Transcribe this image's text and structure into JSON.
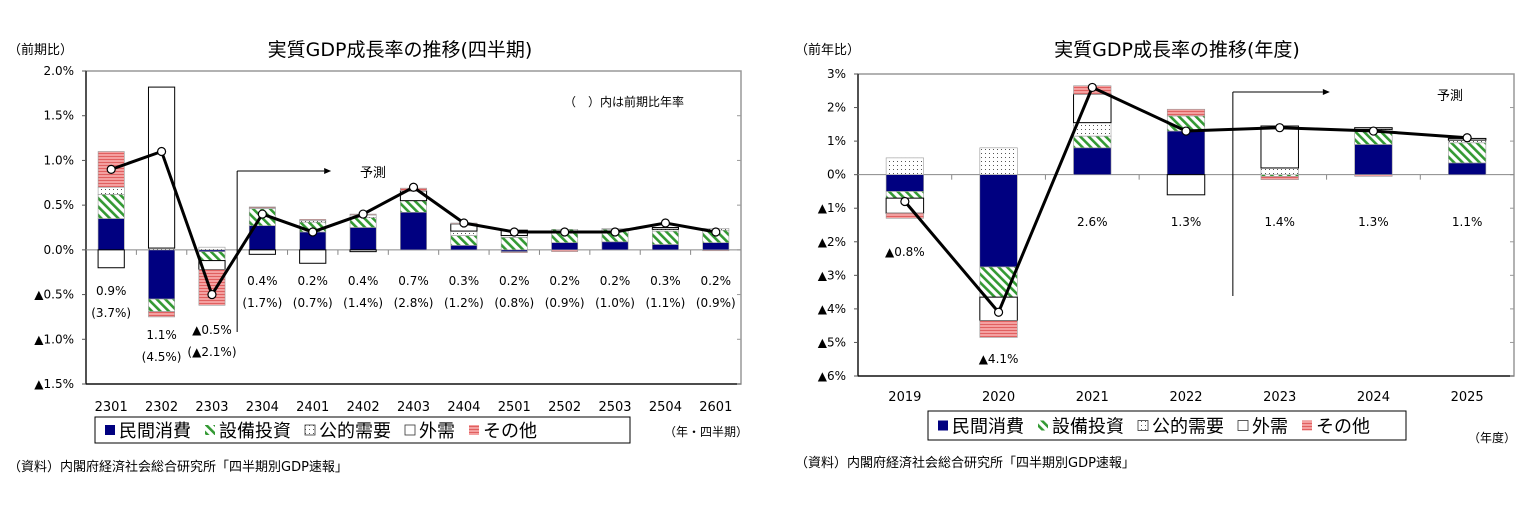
{
  "colors": {
    "private_consumption": "#000080",
    "capex_stripe": "#339933",
    "public_dots": "#666666",
    "external": "#ffffff",
    "other": "#f08080",
    "line": "#000000"
  },
  "chart_data": [
    {
      "type": "bar",
      "stacked": true,
      "title": "実質GDP成長率の推移(四半期)",
      "ylabel": "（前期比）",
      "xlabel": "（年・四半期）",
      "note": "（　）内は前期比年率",
      "forecast_label": "予測",
      "forecast_start": "2304",
      "source": "（資料）内閣府経済社会総合研究所「四半期別GDP速報」",
      "ylim": [
        -1.5,
        2.0
      ],
      "yticks": [
        2.0,
        1.5,
        1.0,
        0.5,
        0.0,
        -0.5,
        -1.0,
        -1.5
      ],
      "ytick_labels": [
        "2.0%",
        "1.5%",
        "1.0%",
        "0.5%",
        "0.0%",
        "▲0.5%",
        "▲1.0%",
        "▲1.5%"
      ],
      "categories": [
        "2301",
        "2302",
        "2303",
        "2304",
        "2401",
        "2402",
        "2403",
        "2404",
        "2501",
        "2502",
        "2503",
        "2504",
        "2601"
      ],
      "legend": [
        "民間消費",
        "設備投資",
        "公的需要",
        "外需",
        "その他"
      ],
      "series": [
        {
          "name": "民間消費",
          "values": [
            0.35,
            -0.55,
            -0.02,
            0.27,
            0.2,
            0.25,
            0.42,
            0.05,
            -0.02,
            0.08,
            0.09,
            0.06,
            0.08
          ]
        },
        {
          "name": "設備投資",
          "values": [
            0.27,
            -0.14,
            -0.1,
            0.19,
            0.11,
            0.11,
            0.13,
            0.11,
            0.14,
            0.15,
            0.14,
            0.15,
            0.14
          ]
        },
        {
          "name": "公的需要",
          "values": [
            0.08,
            0.02,
            0.03,
            0.01,
            0.02,
            0.03,
            0.0,
            0.05,
            0.02,
            0.0,
            0.01,
            0.02,
            0.02
          ]
        },
        {
          "name": "外需",
          "values": [
            -0.2,
            1.8,
            -0.1,
            -0.05,
            -0.15,
            -0.02,
            0.11,
            0.08,
            0.06,
            0.0,
            0.0,
            0.02,
            0.0
          ]
        },
        {
          "name": "その他",
          "values": [
            0.4,
            -0.06,
            -0.4,
            0.01,
            0.01,
            0.01,
            0.03,
            0.01,
            -0.01,
            -0.02,
            0.0,
            0.0,
            -0.01
          ]
        }
      ],
      "line": {
        "name": "実質GDP成長率",
        "values": [
          0.9,
          1.1,
          -0.5,
          0.4,
          0.2,
          0.4,
          0.7,
          0.3,
          0.2,
          0.2,
          0.2,
          0.3,
          0.2
        ]
      },
      "data_labels": [
        "0.9%",
        "1.1%",
        "▲0.5%",
        "0.4%",
        "0.2%",
        "0.4%",
        "0.7%",
        "0.3%",
        "0.2%",
        "0.2%",
        "0.2%",
        "0.3%",
        "0.2%"
      ],
      "annualized_labels": [
        "(3.7%)",
        "(4.5%)",
        "(▲2.1%)",
        "(1.7%)",
        "(0.7%)",
        "(1.4%)",
        "(2.8%)",
        "(1.2%)",
        "(0.8%)",
        "(0.9%)",
        "(1.0%)",
        "(1.1%)",
        "(0.9%)"
      ]
    },
    {
      "type": "bar",
      "stacked": true,
      "title": "実質GDP成長率の推移(年度)",
      "ylabel": "（前年比）",
      "xlabel": "（年度）",
      "forecast_label": "予測",
      "forecast_start": "2023",
      "source": "（資料）内閣府経済社会総合研究所「四半期別GDP速報」",
      "ylim": [
        -6,
        3
      ],
      "yticks": [
        3,
        2,
        1,
        0,
        -1,
        -2,
        -3,
        -4,
        -5,
        -6
      ],
      "ytick_labels": [
        "3%",
        "2%",
        "1%",
        "0%",
        "▲1%",
        "▲2%",
        "▲3%",
        "▲4%",
        "▲5%",
        "▲6%"
      ],
      "categories": [
        "2019",
        "2020",
        "2021",
        "2022",
        "2023",
        "2024",
        "2025"
      ],
      "legend": [
        "民間消費",
        "設備投資",
        "公的需要",
        "外需",
        "その他"
      ],
      "series": [
        {
          "name": "民間消費",
          "values": [
            -0.5,
            -2.75,
            0.8,
            1.3,
            0.0,
            0.9,
            0.35
          ]
        },
        {
          "name": "設備投資",
          "values": [
            -0.2,
            -0.9,
            0.35,
            0.45,
            -0.05,
            0.4,
            0.6
          ]
        },
        {
          "name": "公的需要",
          "values": [
            0.5,
            0.8,
            0.4,
            0.0,
            0.2,
            0.05,
            0.08
          ]
        },
        {
          "name": "外需",
          "values": [
            -0.45,
            -0.7,
            0.85,
            -0.6,
            1.25,
            0.05,
            0.05
          ]
        },
        {
          "name": "その他",
          "values": [
            -0.15,
            -0.5,
            0.25,
            0.2,
            -0.1,
            -0.05,
            0.0
          ]
        }
      ],
      "line": {
        "name": "実質GDP成長率",
        "values": [
          -0.8,
          -4.1,
          2.6,
          1.3,
          1.4,
          1.3,
          1.1
        ]
      },
      "data_labels": [
        "▲0.8%",
        "▲4.1%",
        "2.6%",
        "1.3%",
        "1.4%",
        "1.3%",
        "1.1%"
      ]
    }
  ]
}
